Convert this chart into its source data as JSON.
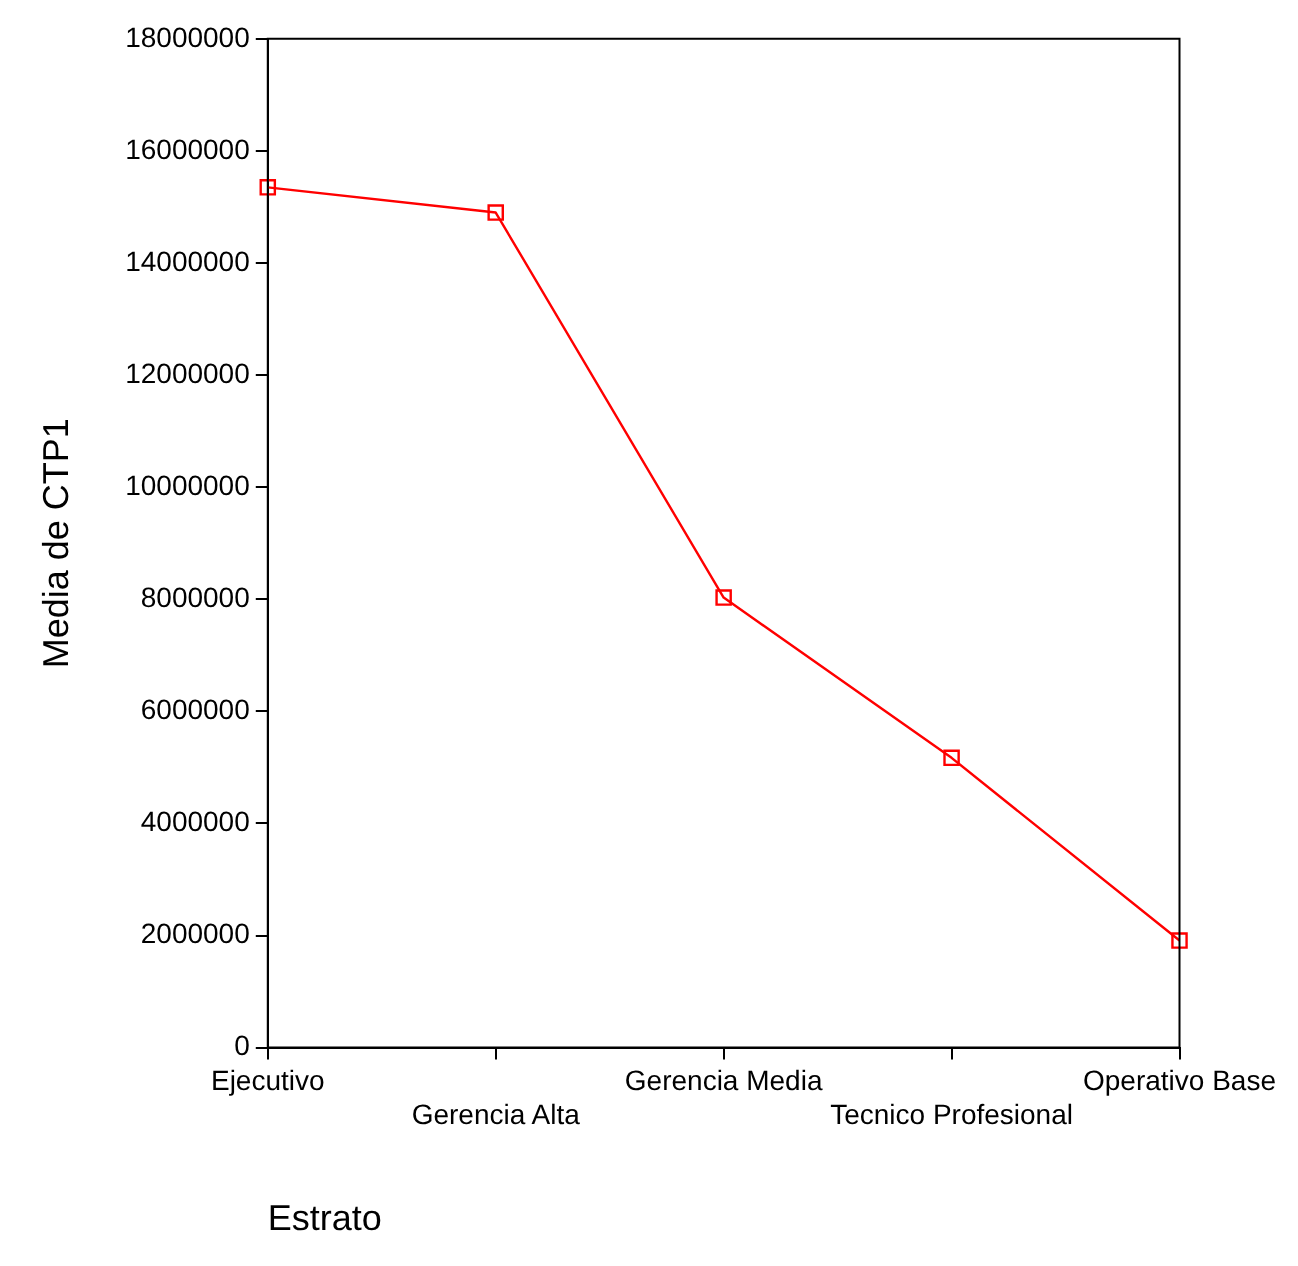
{
  "chart_data": {
    "type": "line",
    "xlabel": "Estrato",
    "ylabel": "Media de CTP1",
    "categories": [
      "Ejecutivo",
      "Gerencia Alta",
      "Gerencia Media",
      "Tecnico Profesional",
      "Operativo Base"
    ],
    "series": [
      {
        "color": "#ff0000",
        "values": [
          15350000,
          14900000,
          8030000,
          5170000,
          1910000
        ]
      }
    ],
    "ylim": [
      0,
      18000000
    ],
    "yticks": [
      0,
      2000000,
      4000000,
      6000000,
      8000000,
      10000000,
      12000000,
      14000000,
      16000000,
      18000000
    ],
    "grid": false,
    "legend": false,
    "marker": "square",
    "line_style": "solid"
  }
}
